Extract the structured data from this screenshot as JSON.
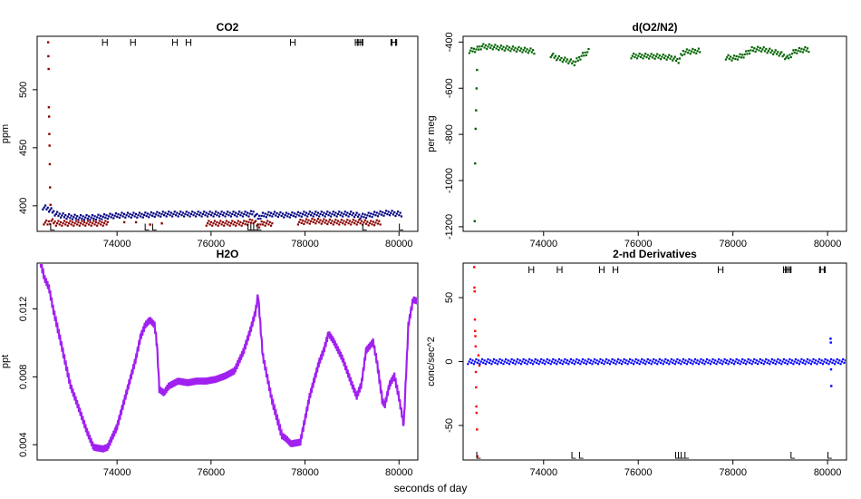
{
  "figure": {
    "xlabel": "seconds of day"
  },
  "chart_data": [
    {
      "id": "co2",
      "type": "scatter",
      "title": "CO2",
      "ylabel": "ppm",
      "xlim": [
        72300,
        80400
      ],
      "ylim": [
        378,
        546
      ],
      "xticks": [
        74000,
        76000,
        78000,
        80000
      ],
      "yticks": [
        400,
        450,
        500
      ],
      "marker_y": 541,
      "markers_low_y": 382,
      "h_marks": [
        73740,
        74340,
        75230,
        75520,
        77740,
        79120,
        79160,
        79180,
        79880,
        79900
      ],
      "l_marks": [
        72620,
        74630,
        74790,
        76820,
        76880,
        76940,
        77020,
        79260,
        80040
      ],
      "series": [
        {
          "name": "co2-reference",
          "color": "#000080",
          "segments": [
            {
              "x": [
                72420,
                72500,
                72600,
                72700,
                72900,
                73200,
                73500,
                73800,
                74100,
                74500,
                75000,
                75500,
                76000,
                76500,
                76800,
                76900,
                77000,
                77100,
                77300,
                77600,
                78000,
                78500,
                79000,
                79100,
                79200,
                79500,
                79800,
                80000,
                80050
              ],
              "y": [
                399,
                398,
                396,
                393,
                391,
                390,
                390,
                391,
                392,
                392,
                393,
                393,
                393,
                393,
                393,
                394,
                390,
                392,
                393,
                392,
                393,
                393,
                393,
                392,
                391,
                393,
                394,
                393,
                393
              ]
            }
          ]
        },
        {
          "name": "co2-sample",
          "color": "#8b0000",
          "segments": [
            {
              "x": [
                72440,
                72520,
                72600,
                72700,
                72900,
                73200,
                73500,
                73800
              ],
              "y": [
                386,
                385,
                387,
                385,
                385,
                385,
                385,
                385
              ]
            },
            {
              "x": [
                74150,
                74400,
                74700,
                74950
              ],
              "y": [
                386,
                386,
                384,
                385
              ]
            },
            {
              "x": [
                75900,
                76200,
                76500,
                76700,
                76800,
                76900,
                77000,
                77100,
                77300
              ],
              "y": [
                385,
                385,
                385,
                385,
                386,
                387,
                383,
                385,
                385
              ]
            },
            {
              "x": [
                77850,
                78200,
                78600,
                79000,
                79200,
                79400,
                79600
              ],
              "y": [
                386,
                387,
                386,
                386,
                386,
                385,
                386
              ]
            }
          ]
        },
        {
          "name": "co2-spike",
          "color": "#8b0000",
          "segments": [
            {
              "x": [
                72530,
                72535,
                72540,
                72545,
                72550,
                72555,
                72560,
                72565,
                72570,
                72580
              ],
              "y": [
                541,
                529,
                518,
                485,
                477,
                462,
                452,
                436,
                416,
                401
              ]
            }
          ]
        }
      ]
    },
    {
      "id": "o2n2",
      "type": "scatter",
      "title": "d(O2/N2)",
      "ylabel": "per meg",
      "xlim": [
        72300,
        80400
      ],
      "ylim": [
        -1220,
        -375
      ],
      "xticks": [
        74000,
        76000,
        78000,
        80000
      ],
      "yticks": [
        -400,
        -600,
        -800,
        -1000,
        -1200
      ],
      "series": [
        {
          "name": "o2n2",
          "color": "#006400",
          "segments": [
            {
              "x": [
                72430,
                72500,
                72600,
                72700,
                72900,
                73100,
                73400,
                73700,
                73800
              ],
              "y": [
                -437,
                -435,
                -430,
                -418,
                -420,
                -425,
                -430,
                -437,
                -440
              ]
            },
            {
              "x": [
                74150,
                74300,
                74500,
                74650,
                74800,
                74950
              ],
              "y": [
                -455,
                -470,
                -480,
                -490,
                -460,
                -440
              ]
            },
            {
              "x": [
                75850,
                76100,
                76400,
                76700,
                76850,
                76950,
                77100,
                77300
              ],
              "y": [
                -460,
                -460,
                -462,
                -467,
                -480,
                -443,
                -440,
                -438
              ]
            },
            {
              "x": [
                77850,
                78000,
                78200,
                78400,
                78600,
                78800,
                79000,
                79150,
                79300,
                79500,
                79600
              ],
              "y": [
                -465,
                -470,
                -460,
                -432,
                -430,
                -440,
                -450,
                -470,
                -440,
                -432,
                -432
              ]
            },
            {
              "x": [
                72540,
                72550,
                72560,
                72570,
                72580,
                72590
              ],
              "y": [
                -1175,
                -925,
                -775,
                -695,
                -600,
                -520
              ]
            }
          ]
        }
      ]
    },
    {
      "id": "h2o",
      "type": "line",
      "title": "H2O",
      "ylabel": "ppt",
      "xlim": [
        72300,
        80400
      ],
      "ylim": [
        0.0031,
        0.0147
      ],
      "xticks": [
        74000,
        76000,
        78000,
        80000
      ],
      "yticks": [
        0.004,
        0.008,
        0.012
      ],
      "series": [
        {
          "name": "h2o",
          "color": "#a020f0",
          "segments": [
            {
              "x": [
                72370,
                72450,
                72550,
                72650,
                72800,
                73000,
                73200,
                73350,
                73500,
                73700,
                73800,
                74000,
                74200,
                74400,
                74500,
                74600,
                74700,
                74800,
                74850,
                74900,
                75000,
                75100,
                75300,
                75500,
                75700,
                75900,
                76100,
                76300,
                76500,
                76700,
                76850,
                76950,
                77000,
                77100,
                77300,
                77500,
                77600,
                77700,
                77900,
                78100,
                78300,
                78400,
                78500,
                78600,
                78800,
                79000,
                79100,
                79200,
                79300,
                79450,
                79550,
                79650,
                79700,
                79800,
                79900,
                80000,
                80100,
                80200,
                80300,
                80400
              ],
              "y": [
                0.0147,
                0.0138,
                0.0132,
                0.0118,
                0.01,
                0.0075,
                0.006,
                0.0048,
                0.0038,
                0.0037,
                0.0038,
                0.005,
                0.007,
                0.009,
                0.0103,
                0.011,
                0.0113,
                0.011,
                0.0098,
                0.0072,
                0.007,
                0.0074,
                0.0077,
                0.0076,
                0.0077,
                0.0077,
                0.0078,
                0.008,
                0.0083,
                0.0095,
                0.0108,
                0.0118,
                0.0128,
                0.0092,
                0.0065,
                0.0045,
                0.0043,
                0.004,
                0.0041,
                0.0068,
                0.0088,
                0.0095,
                0.0105,
                0.0101,
                0.009,
                0.0075,
                0.0068,
                0.0075,
                0.0095,
                0.01,
                0.0085,
                0.0065,
                0.0063,
                0.0075,
                0.008,
                0.0067,
                0.0051,
                0.011,
                0.0125,
                0.0124
              ]
            }
          ]
        }
      ]
    },
    {
      "id": "deriv",
      "type": "scatter",
      "title": "2-nd Derivatives",
      "ylabel": "conc/sec^2",
      "xlim": [
        72300,
        80400
      ],
      "ylim": [
        -77,
        77
      ],
      "xticks": [
        74000,
        76000,
        78000,
        80000
      ],
      "yticks": [
        50,
        0,
        -50
      ],
      "marker_y": 72,
      "markers_low_y": -73,
      "h_marks": [
        73740,
        74340,
        75230,
        75520,
        77740,
        79120,
        79160,
        79180,
        79880,
        79900
      ],
      "l_marks": [
        72620,
        74630,
        74790,
        76820,
        76880,
        76940,
        77020,
        79260,
        80040
      ],
      "series": [
        {
          "name": "deriv-red",
          "color": "#ff0000",
          "segments": [
            {
              "x": [
                72530,
                72535,
                72540,
                72545,
                72550,
                72555,
                72560,
                72565,
                72570,
                72575,
                72580,
                72590,
                72600,
                72620,
                72640
              ],
              "y": [
                74,
                58,
                55,
                33,
                24,
                20,
                12,
                -8,
                -20,
                -35,
                -40,
                -53,
                -74,
                5,
                -3
              ]
            }
          ]
        },
        {
          "name": "deriv-blue",
          "color": "#0000ff",
          "segments": [
            {
              "x": [
                72400,
                74000,
                76000,
                78000,
                80000,
                80400
              ],
              "y": [
                0,
                0,
                0,
                0,
                0,
                0
              ]
            }
          ]
        },
        {
          "name": "deriv-blue-outliers",
          "color": "#0000ff",
          "segments": [
            {
              "x": [
                80060,
                80065,
                80070,
                80075
              ],
              "y": [
                18,
                15,
                -6,
                -19
              ]
            }
          ]
        }
      ]
    }
  ]
}
